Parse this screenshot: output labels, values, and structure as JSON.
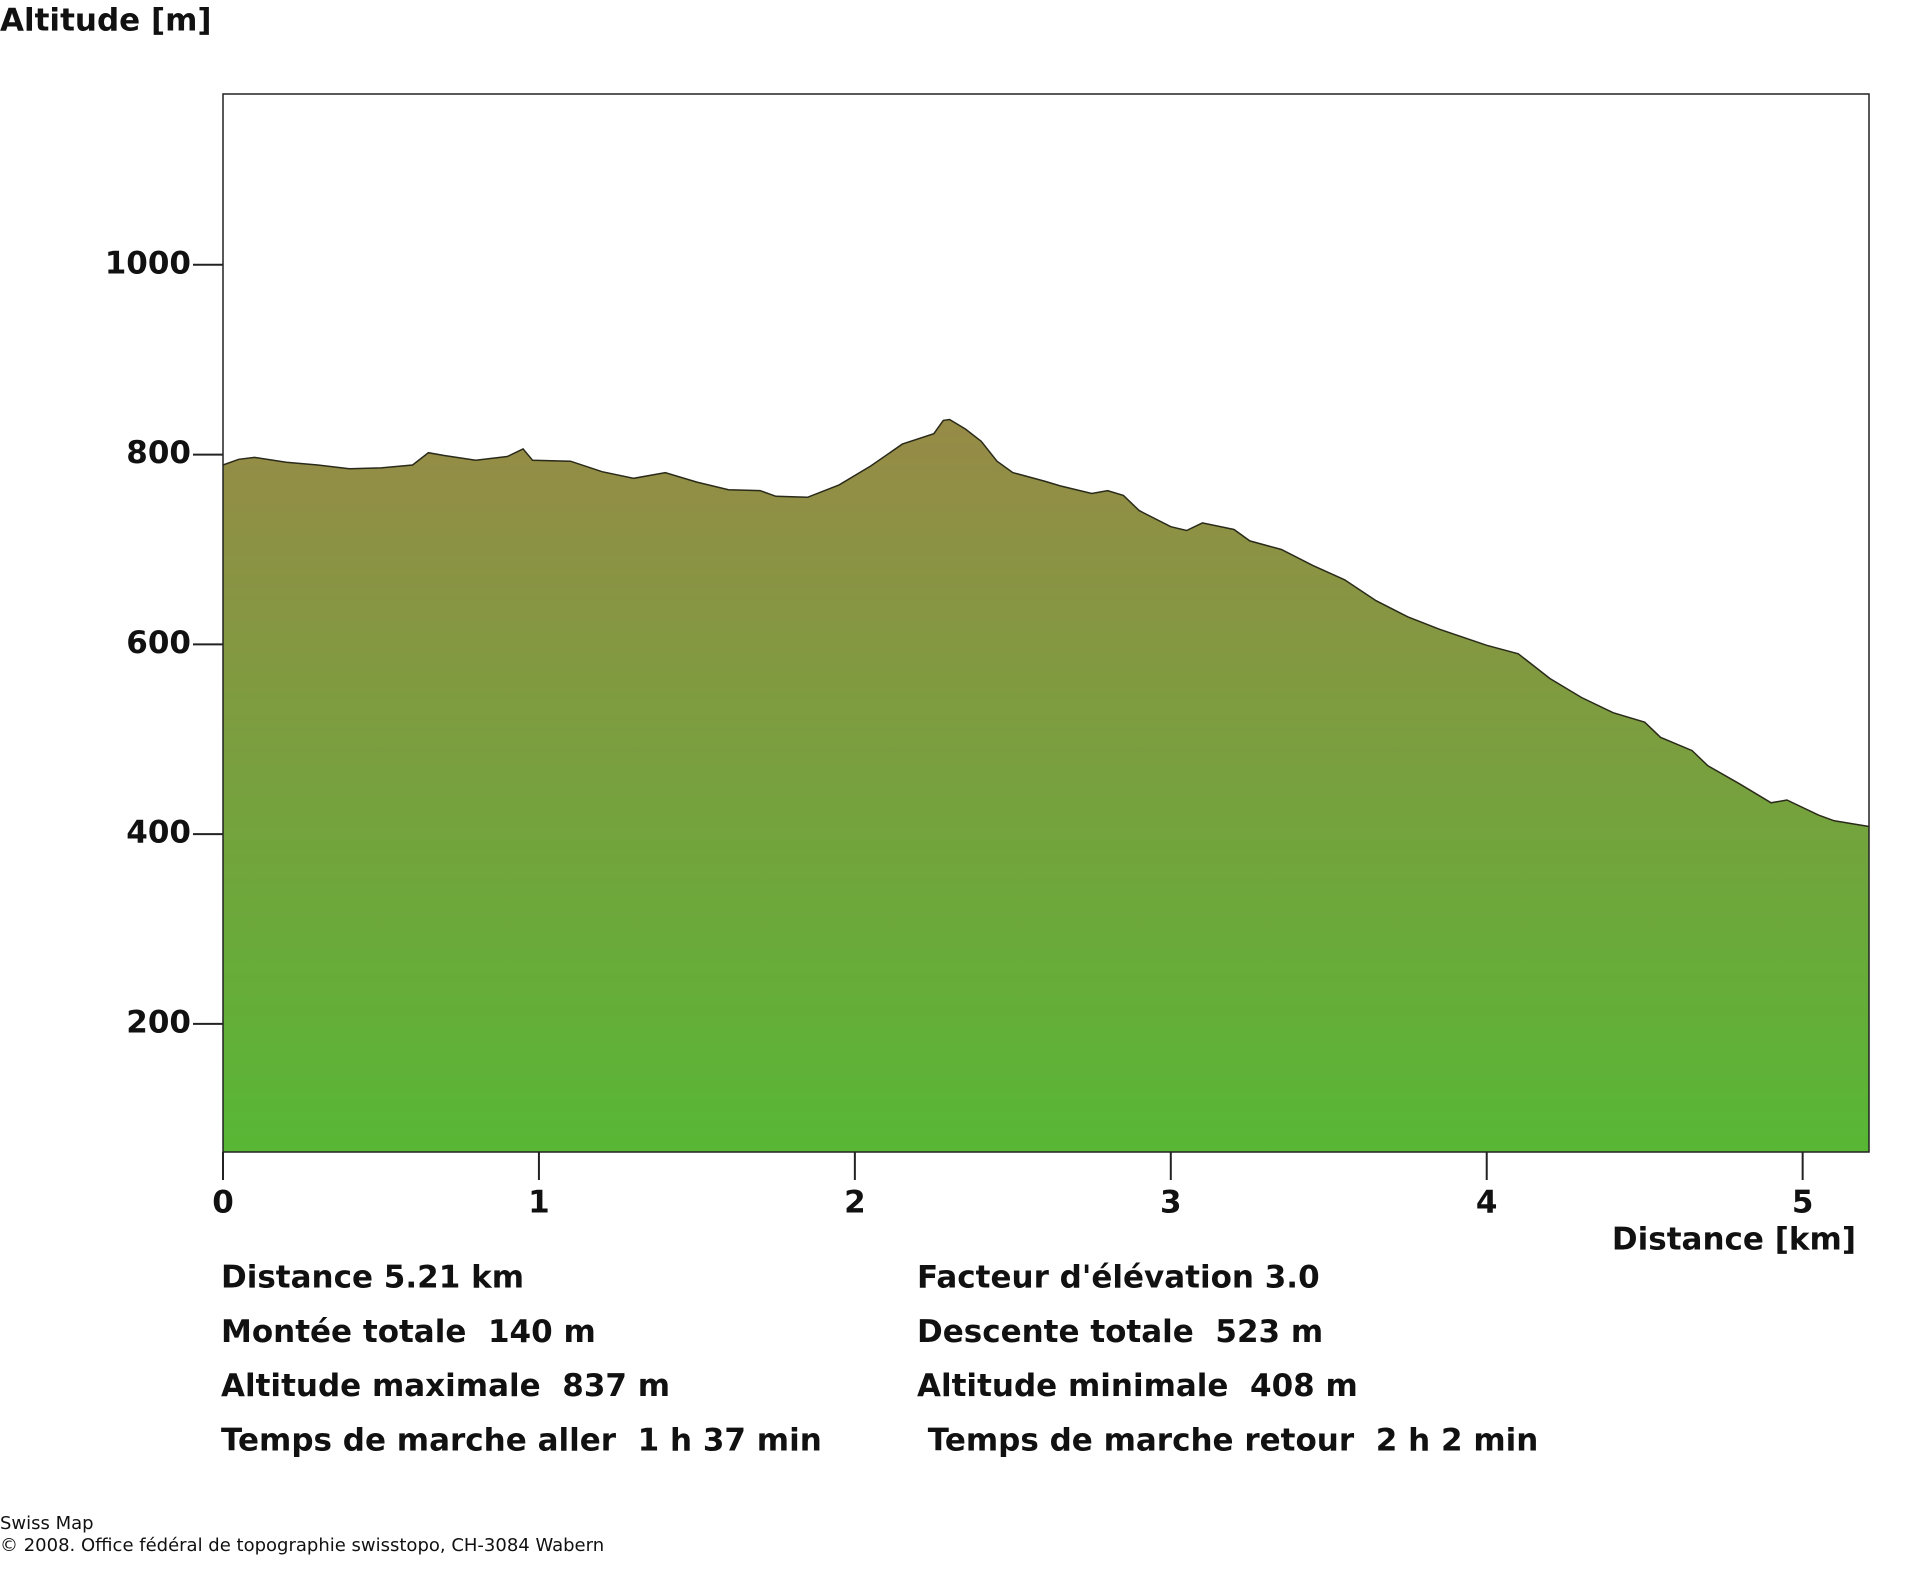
{
  "chart_data": {
    "type": "area",
    "y_label": "Altitude [m]",
    "x_label": "Distance [km]",
    "x": [
      0,
      0.05,
      0.1,
      0.2,
      0.3,
      0.4,
      0.5,
      0.6,
      0.65,
      0.7,
      0.8,
      0.9,
      0.95,
      0.98,
      1.1,
      1.2,
      1.3,
      1.4,
      1.5,
      1.6,
      1.7,
      1.75,
      1.85,
      1.95,
      2.05,
      2.15,
      2.25,
      2.28,
      2.3,
      2.35,
      2.4,
      2.45,
      2.5,
      2.6,
      2.65,
      2.75,
      2.8,
      2.85,
      2.9,
      3.0,
      3.05,
      3.1,
      3.2,
      3.25,
      3.35,
      3.45,
      3.55,
      3.65,
      3.75,
      3.85,
      4.0,
      4.1,
      4.2,
      4.3,
      4.4,
      4.5,
      4.55,
      4.65,
      4.7,
      4.8,
      4.9,
      4.95,
      5.05,
      5.1,
      5.21
    ],
    "values": [
      789,
      795,
      797,
      792,
      789,
      785,
      786,
      789,
      802,
      799,
      794,
      798,
      806,
      794,
      793,
      782,
      775,
      781,
      771,
      763,
      762,
      756,
      755,
      768,
      788,
      811,
      822,
      836,
      837,
      827,
      814,
      793,
      781,
      772,
      767,
      759,
      762,
      757,
      741,
      724,
      720,
      728,
      721,
      709,
      700,
      683,
      668,
      646,
      629,
      616,
      599,
      590,
      564,
      544,
      528,
      518,
      502,
      488,
      472,
      453,
      433,
      436,
      420,
      414,
      408
    ],
    "gradient": [
      "#978a47",
      "#58b735"
    ],
    "line_color": "#2a2a1a",
    "xlim": [
      0,
      5.21
    ],
    "ylim": [
      65,
      1180
    ],
    "xticks": [
      0,
      1,
      2,
      3,
      4,
      5
    ],
    "yticks": [
      200,
      400,
      600,
      800,
      1000
    ]
  },
  "stats": [
    [
      "Distance 5.21 km",
      "Facteur d'élévation 3.0"
    ],
    [
      "Montée totale  140 m",
      "Descente totale  523 m"
    ],
    [
      "Altitude maximale  837 m",
      "Altitude minimale  408 m"
    ],
    [
      "Temps de marche aller  1 h 37 min",
      " Temps de marche retour  2 h 2 min"
    ]
  ],
  "footer": [
    "Swiss Map",
    "© 2008. Office fédéral de topographie swisstopo, CH-3084 Wabern"
  ]
}
